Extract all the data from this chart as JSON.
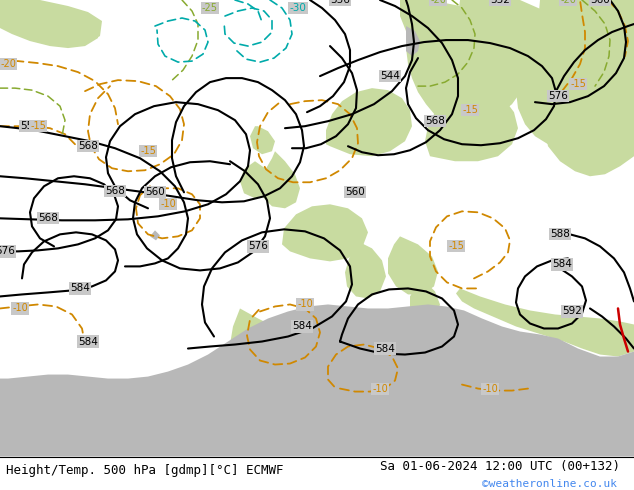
{
  "title_left": "Height/Temp. 500 hPa [gdmp][°C] ECMWF",
  "title_right": "Sa 01-06-2024 12:00 UTC (00+132)",
  "credit": "©weatheronline.co.uk",
  "bg_sea_color": "#c8c8c8",
  "land_green": "#c8dba0",
  "land_gray": "#b8b8b8",
  "figsize": [
    6.34,
    4.9
  ],
  "dpi": 100,
  "bottom_bar_color": "#ffffff",
  "title_fontsize": 9.0,
  "credit_color": "#4488ee",
  "black_color": "#000000",
  "orange_color": "#d08800",
  "green_color": "#88aa30",
  "cyan_color": "#00aaaa",
  "red_color": "#cc0000",
  "map_bg": "#c8c8c8"
}
